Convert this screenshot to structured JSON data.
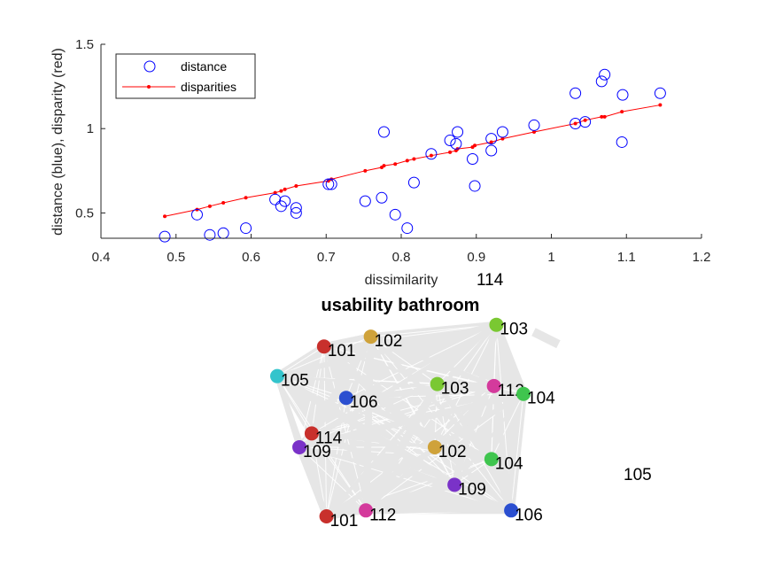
{
  "chart_data": [
    {
      "type": "scatter",
      "xlabel": "dissimilarity",
      "ylabel": "distance (blue), disparity (red)",
      "xlim": [
        0.4,
        1.2
      ],
      "ylim": [
        0.35,
        1.5
      ],
      "xticks": [
        "0.4",
        "0.5",
        "0.6",
        "0.7",
        "0.8",
        "0.9",
        "1",
        "1.1",
        "1.2"
      ],
      "yticks": [
        "0.5",
        "1",
        "1.5"
      ],
      "legend_position": "top-left",
      "colors": {
        "distance": "#0000ff",
        "disparities": "#ff0000"
      },
      "series": [
        {
          "name": "distance",
          "marker": "open-circle",
          "x": [
            0.485,
            0.528,
            0.545,
            0.563,
            0.593,
            0.632,
            0.64,
            0.645,
            0.66,
            0.66,
            0.703,
            0.707,
            0.752,
            0.774,
            0.777,
            0.792,
            0.808,
            0.817,
            0.84,
            0.865,
            0.873,
            0.875,
            0.895,
            0.898,
            0.92,
            0.92,
            0.935,
            0.977,
            1.032,
            1.032,
            1.045,
            1.067,
            1.071,
            1.094,
            1.095,
            1.145
          ],
          "y": [
            0.36,
            0.49,
            0.37,
            0.38,
            0.41,
            0.58,
            0.54,
            0.57,
            0.53,
            0.5,
            0.67,
            0.67,
            0.57,
            0.59,
            0.98,
            0.49,
            0.41,
            0.68,
            0.85,
            0.93,
            0.91,
            0.98,
            0.82,
            0.66,
            0.94,
            0.87,
            0.98,
            1.02,
            1.21,
            1.03,
            1.04,
            1.28,
            1.32,
            0.92,
            1.2,
            1.21
          ]
        },
        {
          "name": "disparities",
          "marker": "dot-line",
          "x": [
            0.485,
            0.528,
            0.545,
            0.563,
            0.593,
            0.632,
            0.64,
            0.645,
            0.66,
            0.703,
            0.707,
            0.752,
            0.774,
            0.777,
            0.792,
            0.808,
            0.817,
            0.84,
            0.865,
            0.873,
            0.875,
            0.895,
            0.898,
            0.92,
            0.935,
            0.977,
            1.032,
            1.045,
            1.067,
            1.071,
            1.094,
            1.145
          ],
          "y": [
            0.48,
            0.52,
            0.54,
            0.56,
            0.59,
            0.62,
            0.63,
            0.64,
            0.66,
            0.69,
            0.7,
            0.75,
            0.77,
            0.78,
            0.79,
            0.81,
            0.82,
            0.84,
            0.86,
            0.87,
            0.88,
            0.89,
            0.9,
            0.92,
            0.94,
            0.98,
            1.03,
            1.05,
            1.07,
            1.07,
            1.1,
            1.14
          ]
        }
      ]
    },
    {
      "type": "network",
      "title": "usability bathroom",
      "edge_color": "#e6e6e6",
      "nodes": [
        {
          "label": "103",
          "color": "#7ac832",
          "x": 0.89,
          "y": 0.97
        },
        {
          "label": "102",
          "color": "#cfa23a",
          "x": 0.38,
          "y": 0.91
        },
        {
          "label": "101",
          "color": "#c8302c",
          "x": 0.19,
          "y": 0.86
        },
        {
          "label": "105",
          "color": "#33c4cc",
          "x": 0.0,
          "y": 0.71
        },
        {
          "label": "103",
          "color": "#7ac832",
          "x": 0.65,
          "y": 0.67
        },
        {
          "label": "112",
          "color": "#d43a9c",
          "x": 0.88,
          "y": 0.66
        },
        {
          "label": "104",
          "color": "#3fc54e",
          "x": 1.0,
          "y": 0.62
        },
        {
          "label": "106",
          "color": "#2b4fd0",
          "x": 0.28,
          "y": 0.6
        },
        {
          "label": "114",
          "color": "#c8302c",
          "x": 0.14,
          "y": 0.42
        },
        {
          "label": "109",
          "color": "#7a32c8",
          "x": 0.09,
          "y": 0.35
        },
        {
          "label": "102",
          "color": "#cfa23a",
          "x": 0.64,
          "y": 0.35
        },
        {
          "label": "104",
          "color": "#3fc54e",
          "x": 0.87,
          "y": 0.29
        },
        {
          "label": "109",
          "color": "#7a32c8",
          "x": 0.72,
          "y": 0.16
        },
        {
          "label": "106",
          "color": "#2b4fd0",
          "x": 0.95,
          "y": 0.03
        },
        {
          "label": "112",
          "color": "#d43a9c",
          "x": 0.36,
          "y": 0.03
        },
        {
          "label": "101",
          "color": "#c8302c",
          "x": 0.2,
          "y": 0.0
        }
      ]
    }
  ],
  "extra_labels": {
    "top": "114",
    "right": "105"
  }
}
